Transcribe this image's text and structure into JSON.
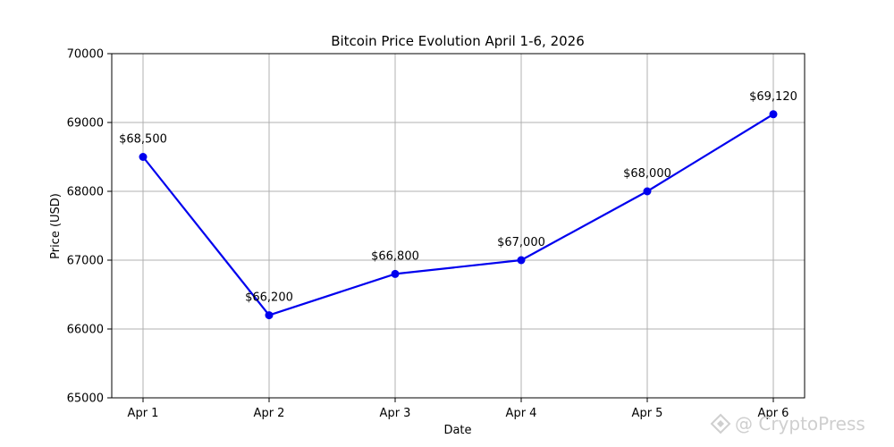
{
  "chart_data": {
    "type": "line",
    "title": "Bitcoin Price Evolution April 1-6, 2026",
    "xlabel": "Date",
    "ylabel": "Price (USD)",
    "categories": [
      "Apr 1",
      "Apr 2",
      "Apr 3",
      "Apr 4",
      "Apr 5",
      "Apr 6"
    ],
    "series": [
      {
        "values": [
          68500,
          66200,
          66800,
          67000,
          68000,
          69120
        ],
        "labels": [
          "$68,500",
          "$66,200",
          "$66,800",
          "$67,000",
          "$68,000",
          "$69,120"
        ],
        "color": "#0000ee"
      }
    ],
    "ylim": [
      65000,
      70000
    ],
    "yticks": [
      65000,
      66000,
      67000,
      68000,
      69000,
      70000
    ],
    "grid": true,
    "marker": "circle"
  },
  "watermark": {
    "text": "@ CryptoPress",
    "icon": "cryptopress-logo-icon"
  }
}
